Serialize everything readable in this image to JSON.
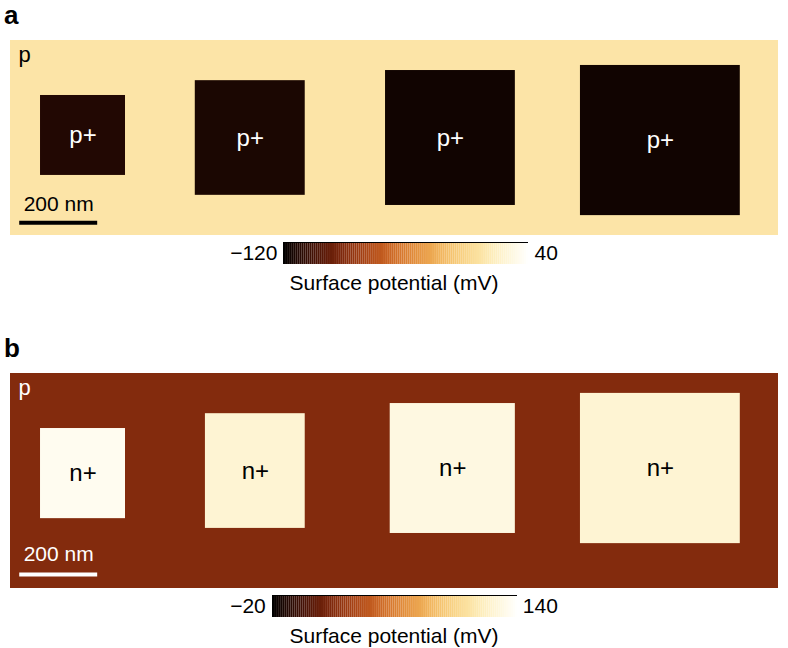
{
  "chart_data": [
    {
      "type": "heatmap",
      "title": "a",
      "xlim": [
        0,
        1970
      ],
      "ylim": [
        0,
        500
      ],
      "tick_labels": false,
      "background": {
        "label": "p",
        "value": 10
      },
      "regions": [
        {
          "label": "p+",
          "x": [
            77,
            295
          ],
          "y": [
            141,
            346
          ],
          "value": -110
        },
        {
          "label": "p+",
          "x": [
            474,
            756
          ],
          "y": [
            103,
            397
          ],
          "value": -112
        },
        {
          "label": "p+",
          "x": [
            962,
            1295
          ],
          "y": [
            77,
            423
          ],
          "value": -115
        },
        {
          "label": "p+",
          "x": [
            1462,
            1872
          ],
          "y": [
            64,
            449
          ],
          "value": -115
        }
      ],
      "colorbar": {
        "range": [
          -120,
          40
        ],
        "ticks": [
          -120,
          40
        ],
        "label": "Surface potential (mV)"
      },
      "scalebar": {
        "length": 200,
        "label": "200 nm"
      }
    },
    {
      "type": "heatmap",
      "title": "b",
      "xlim": [
        0,
        1970
      ],
      "ylim": [
        0,
        551
      ],
      "tick_labels": false,
      "background": {
        "label": "p",
        "value": 20
      },
      "regions": [
        {
          "label": "n+",
          "x": [
            77,
            295
          ],
          "y": [
            141,
            372
          ],
          "value": 135
        },
        {
          "label": "n+",
          "x": [
            500,
            756
          ],
          "y": [
            103,
            397
          ],
          "value": 125
        },
        {
          "label": "n+",
          "x": [
            974,
            1295
          ],
          "y": [
            77,
            410
          ],
          "value": 130
        },
        {
          "label": "n+",
          "x": [
            1462,
            1872
          ],
          "y": [
            51,
            436
          ],
          "value": 125
        }
      ],
      "colorbar": {
        "range": [
          -20,
          140
        ],
        "ticks": [
          -20,
          140
        ],
        "label": "Surface potential (mV)"
      },
      "scalebar": {
        "length": 200,
        "label": "200 nm"
      }
    }
  ]
}
